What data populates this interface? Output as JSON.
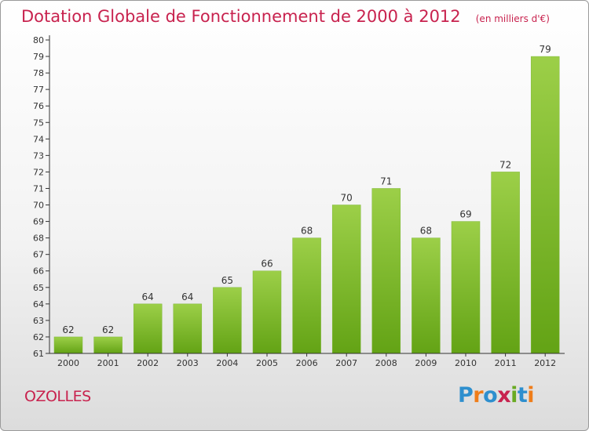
{
  "chart_data": {
    "type": "bar",
    "title": "Dotation Globale de Fonctionnement de 2000 à 2012",
    "unit": "(en milliers d'€)",
    "categories": [
      "2000",
      "2001",
      "2002",
      "2003",
      "2004",
      "2005",
      "2006",
      "2007",
      "2008",
      "2009",
      "2010",
      "2011",
      "2012"
    ],
    "values": [
      62,
      62,
      64,
      64,
      65,
      66,
      68,
      70,
      71,
      68,
      69,
      72,
      79
    ],
    "ylim": [
      61,
      80
    ],
    "yticks": [
      61,
      62,
      63,
      64,
      65,
      66,
      67,
      68,
      69,
      70,
      71,
      72,
      73,
      74,
      75,
      76,
      77,
      78,
      79,
      80
    ],
    "grid": false,
    "legend": "none",
    "bar_color_top": "#9ccf48",
    "bar_color_bottom": "#63a315",
    "title_color": "#c8224e"
  },
  "footer": {
    "commune": "OZOLLES",
    "logo_text": "Proxiti",
    "logo_colors": [
      "#2e8fce",
      "#ef7d1a",
      "#2e8fce",
      "#c8224e",
      "#69aa22",
      "#2e8fce",
      "#ef7d1a"
    ]
  }
}
